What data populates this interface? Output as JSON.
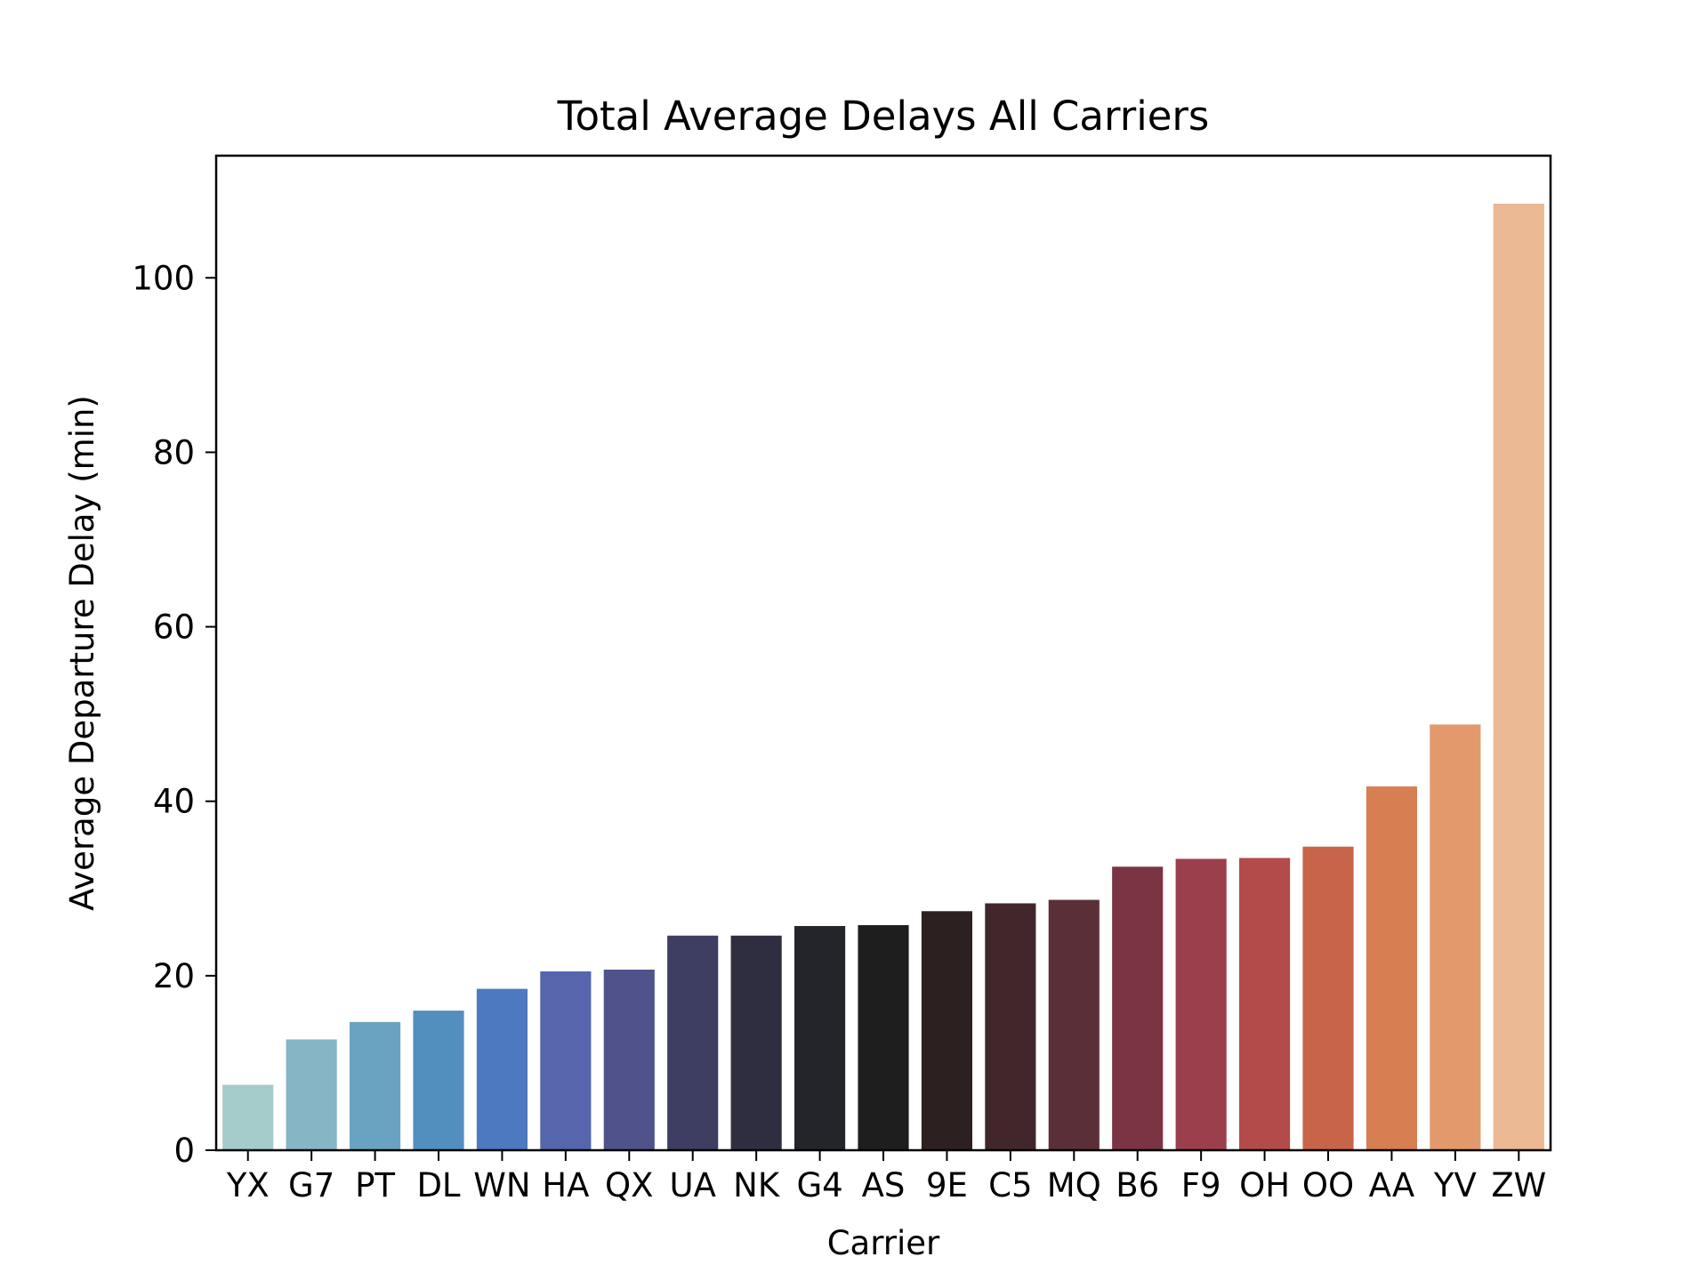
{
  "chart_data": {
    "type": "bar",
    "title": "Total Average Delays All Carriers",
    "xlabel": "Carrier",
    "ylabel": "Average Departure Delay (min)",
    "categories": [
      "YX",
      "G7",
      "PT",
      "DL",
      "WN",
      "HA",
      "QX",
      "UA",
      "NK",
      "G4",
      "AS",
      "9E",
      "C5",
      "MQ",
      "B6",
      "F9",
      "OH",
      "OO",
      "AA",
      "YV",
      "ZW"
    ],
    "values": [
      7.5,
      12.7,
      14.7,
      16.0,
      18.5,
      20.5,
      20.7,
      24.6,
      24.6,
      25.7,
      25.8,
      27.4,
      28.3,
      28.7,
      32.5,
      33.4,
      33.5,
      34.8,
      41.7,
      48.8,
      108.5
    ],
    "colors": [
      "#a5cbcb",
      "#86b5c5",
      "#6aa3c1",
      "#528fbf",
      "#4c79bf",
      "#5566ad",
      "#50528c",
      "#3e3d62",
      "#2f2e41",
      "#24252b",
      "#1e1e1f",
      "#2c2021",
      "#41272b",
      "#5b2f38",
      "#7a3444",
      "#9b3f4c",
      "#b34b4a",
      "#c8644a",
      "#d77e52",
      "#e29a6c",
      "#eab893"
    ],
    "ylim": [
      0,
      114
    ],
    "yticks": [
      0,
      20,
      40,
      60,
      80,
      100
    ],
    "grid": false,
    "legend": "none"
  }
}
